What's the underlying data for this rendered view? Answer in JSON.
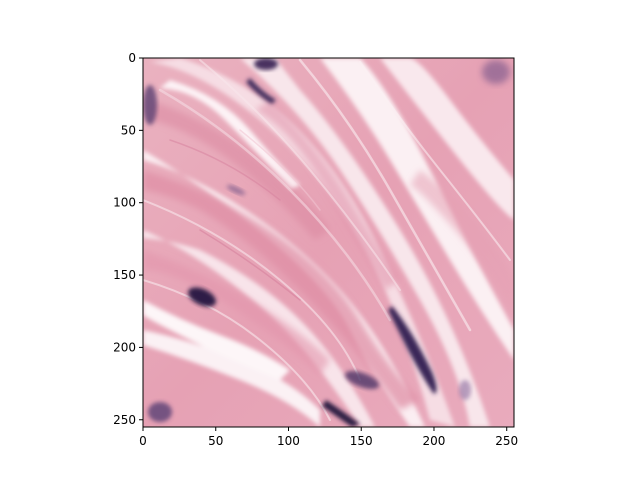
{
  "figure": {
    "background": "#ffffff",
    "image_description_colors": {
      "stroma_pink": "#e7a4b6",
      "pale_pink": "#f4d3dc",
      "white_gaps": "#fbf3f6",
      "nucleus_purple": "#3f2b57"
    }
  },
  "axes": {
    "xlim": [
      0,
      255
    ],
    "ylim": [
      255,
      0
    ],
    "x_ticks": [
      0,
      50,
      100,
      150,
      200,
      250
    ],
    "y_ticks": [
      0,
      50,
      100,
      150,
      200,
      250
    ],
    "x_tick_labels": [
      "0",
      "50",
      "100",
      "150",
      "200",
      "250"
    ],
    "y_tick_labels": [
      "0",
      "50",
      "100",
      "150",
      "200",
      "250"
    ]
  }
}
